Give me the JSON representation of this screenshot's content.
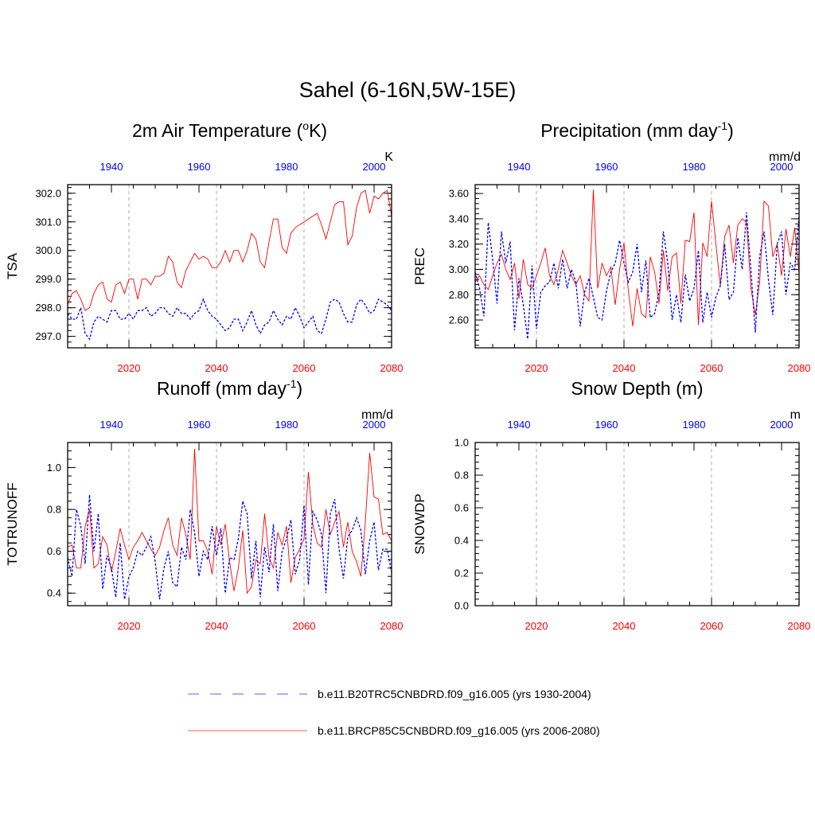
{
  "main_title": "Sahel (6-16N,5W-15E)",
  "colors": {
    "future": "#ff0000",
    "historical": "#0000ff",
    "grid": "#aaaaaa"
  },
  "legend": [
    {
      "label": "b.e11.B20TRC5CNBDRD.f09_g16.005 (yrs 1930-2004)",
      "style": "dashed",
      "color": "#0000ff"
    },
    {
      "label": "b.e11.BRCP85C5CNBDRD.f09_g16.005 (yrs 2006-2080)",
      "style": "solid",
      "color": "#ff0000"
    }
  ],
  "chart_data": [
    {
      "type": "line",
      "title": "2m Air Temperature (",
      "title_sup": "o",
      "title_tail": "K)",
      "ylabel": "TSA",
      "units": "K",
      "xlim_bottom": [
        2006,
        2080
      ],
      "xlim_top": [
        1930,
        2004
      ],
      "bottom_ticks": [
        "2020",
        "2040",
        "2060",
        "2080"
      ],
      "top_ticks": [
        "1940",
        "1960",
        "1980",
        "2000"
      ],
      "ylim": [
        296.6,
        302.3
      ],
      "yticks": [
        297.0,
        298.0,
        299.0,
        300.0,
        301.0,
        302.0
      ],
      "ytick_labels": [
        "297.0",
        "298.0",
        "299.0",
        "300.0",
        "301.0",
        "302.0"
      ],
      "series": [
        {
          "name": "b.e11.BRCP85C5CNBDRD.f09_g16.005",
          "style": "solid",
          "values": [
            298.1,
            298.5,
            298.6,
            298.3,
            297.9,
            298.0,
            298.5,
            298.8,
            298.9,
            298.3,
            298.2,
            298.8,
            298.9,
            298.5,
            299.0,
            299.0,
            298.3,
            299.0,
            299.0,
            298.8,
            299.1,
            299.1,
            299.2,
            299.8,
            299.6,
            298.9,
            298.7,
            299.3,
            299.6,
            299.9,
            299.7,
            299.8,
            299.7,
            299.4,
            299.4,
            299.6,
            300.0,
            299.6,
            300.0,
            300.0,
            299.6,
            300.0,
            300.6,
            300.4,
            299.6,
            299.4,
            300.3,
            301.1,
            301.1,
            300.1,
            299.9,
            300.6,
            300.8,
            300.9,
            301.0,
            301.1,
            301.2,
            301.3,
            300.9,
            300.4,
            301.0,
            301.6,
            301.7,
            301.7,
            300.2,
            300.5,
            301.5,
            302.0,
            302.1,
            301.3,
            301.9,
            301.8,
            302.0,
            302.1,
            301.2
          ]
        },
        {
          "name": "b.e11.B20TRC5CNBDRD.f09_g16.005",
          "style": "dashed",
          "values": [
            297.8,
            297.6,
            297.6,
            298.0,
            297.1,
            296.9,
            297.5,
            297.7,
            297.6,
            297.5,
            297.9,
            297.9,
            297.6,
            297.6,
            297.8,
            297.6,
            297.9,
            297.9,
            298.0,
            297.7,
            297.8,
            298.0,
            298.0,
            297.8,
            297.7,
            298.0,
            297.8,
            297.8,
            297.6,
            297.8,
            297.9,
            298.3,
            297.9,
            297.7,
            297.6,
            297.4,
            297.2,
            297.3,
            297.6,
            297.6,
            297.2,
            297.5,
            297.9,
            297.4,
            297.1,
            297.4,
            297.5,
            297.9,
            297.6,
            297.4,
            297.7,
            297.6,
            298.0,
            297.7,
            297.3,
            297.5,
            297.7,
            297.2,
            297.1,
            297.6,
            298.2,
            298.3,
            298.2,
            297.8,
            297.5,
            297.5,
            298.1,
            298.3,
            298.1,
            297.8,
            297.9,
            298.3,
            298.2,
            298.1,
            297.9
          ]
        }
      ]
    },
    {
      "type": "line",
      "title": "Precipitation (mm day",
      "title_sup": "-1",
      "title_tail": ")",
      "ylabel": "PREC",
      "units": "mm/d",
      "xlim_bottom": [
        2006,
        2080
      ],
      "xlim_top": [
        1930,
        2004
      ],
      "bottom_ticks": [
        "2020",
        "2040",
        "2060",
        "2080"
      ],
      "top_ticks": [
        "1940",
        "1960",
        "1980",
        "2000"
      ],
      "ylim": [
        2.38,
        3.67
      ],
      "yticks": [
        2.6,
        2.8,
        3.0,
        3.2,
        3.4,
        3.6
      ],
      "ytick_labels": [
        "2.60",
        "2.80",
        "3.00",
        "3.20",
        "3.40",
        "3.60"
      ],
      "series": [
        {
          "name": "b.e11.BRCP85C5CNBDRD.f09_g16.005",
          "style": "solid",
          "values": [
            2.9,
            2.95,
            2.88,
            2.84,
            2.95,
            3.05,
            3.12,
            3.0,
            2.92,
            3.05,
            2.77,
            3.08,
            2.88,
            2.85,
            2.95,
            3.05,
            3.17,
            2.95,
            2.88,
            3.0,
            3.15,
            3.05,
            2.95,
            2.88,
            2.95,
            2.8,
            2.75,
            3.63,
            2.85,
            3.05,
            2.95,
            3.02,
            2.72,
            3.0,
            3.21,
            2.83,
            2.55,
            2.85,
            2.65,
            2.62,
            3.1,
            2.98,
            2.73,
            3.15,
            2.83,
            3.1,
            3.13,
            2.73,
            3.23,
            3.22,
            3.45,
            2.56,
            3.21,
            3.1,
            3.54,
            3.2,
            2.87,
            3.26,
            3.35,
            3.05,
            3.35,
            3.4,
            3.37,
            2.85,
            2.64,
            2.9,
            3.54,
            3.5,
            3.1,
            3.2,
            2.95,
            3.32,
            3.1,
            3.33,
            2.97
          ]
        },
        {
          "name": "b.e11.B20TRC5CNBDRD.f09_g16.005",
          "style": "dashed",
          "values": [
            2.98,
            2.85,
            2.63,
            3.37,
            3.08,
            2.73,
            3.3,
            3.05,
            3.22,
            2.52,
            2.93,
            2.72,
            2.45,
            3.03,
            2.53,
            2.82,
            2.87,
            2.9,
            3.05,
            2.85,
            3.08,
            2.85,
            3.0,
            2.9,
            2.55,
            2.82,
            2.93,
            2.78,
            2.62,
            2.6,
            2.83,
            2.98,
            3.05,
            3.23,
            3.05,
            2.9,
            2.98,
            3.2,
            2.82,
            3.07,
            2.62,
            2.65,
            2.82,
            3.3,
            3.05,
            2.6,
            2.8,
            2.58,
            2.96,
            2.75,
            2.85,
            3.15,
            2.58,
            2.82,
            2.62,
            2.78,
            2.87,
            3.2,
            2.76,
            2.82,
            3.25,
            3.0,
            3.45,
            3.0,
            2.5,
            3.1,
            3.3,
            2.92,
            2.64,
            3.2,
            3.3,
            2.8,
            3.05,
            3.0,
            3.43
          ]
        }
      ]
    },
    {
      "type": "line",
      "title": "Runoff (mm day",
      "title_sup": "-1",
      "title_tail": ")",
      "ylabel": "TOTRUNOFF",
      "units": "mm/d",
      "xlim_bottom": [
        2006,
        2080
      ],
      "xlim_top": [
        1930,
        2004
      ],
      "bottom_ticks": [
        "2020",
        "2040",
        "2060",
        "2080"
      ],
      "top_ticks": [
        "1940",
        "1960",
        "1980",
        "2000"
      ],
      "ylim": [
        0.34,
        1.12
      ],
      "yticks": [
        0.4,
        0.6,
        0.8,
        1.0
      ],
      "ytick_labels": [
        "0.4",
        "0.6",
        "0.8",
        "1.0"
      ],
      "series": [
        {
          "name": "b.e11.BRCP85C5CNBDRD.f09_g16.005",
          "style": "solid",
          "values": [
            0.62,
            0.63,
            0.52,
            0.52,
            0.72,
            0.8,
            0.52,
            0.54,
            0.67,
            0.63,
            0.5,
            0.6,
            0.71,
            0.63,
            0.56,
            0.62,
            0.65,
            0.69,
            0.65,
            0.61,
            0.58,
            0.62,
            0.7,
            0.76,
            0.63,
            0.58,
            0.76,
            0.68,
            0.56,
            1.09,
            0.65,
            0.65,
            0.6,
            0.49,
            0.72,
            0.63,
            0.73,
            0.55,
            0.41,
            0.52,
            0.7,
            0.4,
            0.43,
            0.56,
            0.54,
            0.78,
            0.57,
            0.52,
            0.69,
            0.63,
            0.72,
            0.45,
            0.57,
            0.61,
            0.66,
            0.98,
            0.73,
            0.64,
            0.62,
            0.8,
            0.68,
            0.74,
            0.79,
            0.62,
            0.74,
            0.6,
            0.55,
            0.48,
            0.74,
            1.07,
            0.86,
            0.85,
            0.68,
            0.69,
            0.65
          ]
        },
        {
          "name": "b.e11.B20TRC5CNBDRD.f09_g16.005",
          "style": "dashed",
          "values": [
            0.57,
            0.48,
            0.8,
            0.72,
            0.54,
            0.87,
            0.6,
            0.78,
            0.42,
            0.58,
            0.52,
            0.38,
            0.64,
            0.37,
            0.48,
            0.52,
            0.6,
            0.58,
            0.62,
            0.67,
            0.55,
            0.37,
            0.52,
            0.6,
            0.45,
            0.43,
            0.62,
            0.56,
            0.8,
            0.69,
            0.48,
            0.6,
            0.56,
            0.72,
            0.58,
            0.71,
            0.4,
            0.57,
            0.56,
            0.66,
            0.84,
            0.78,
            0.47,
            0.65,
            0.38,
            0.62,
            0.5,
            0.73,
            0.41,
            0.6,
            0.66,
            0.75,
            0.49,
            0.56,
            0.82,
            0.44,
            0.79,
            0.75,
            0.68,
            0.4,
            0.78,
            0.85,
            0.61,
            0.47,
            0.67,
            0.7,
            0.76,
            0.7,
            0.49,
            0.65,
            0.74,
            0.51,
            0.61,
            0.61,
            0.5
          ]
        }
      ]
    },
    {
      "type": "line",
      "title": "Snow Depth (m)",
      "title_sup": "",
      "title_tail": "",
      "ylabel": "SNOWDP",
      "units": "m",
      "xlim_bottom": [
        2006,
        2080
      ],
      "xlim_top": [
        1930,
        2004
      ],
      "bottom_ticks": [
        "2020",
        "2040",
        "2060",
        "2080"
      ],
      "top_ticks": [
        "1940",
        "1960",
        "1980",
        "2000"
      ],
      "ylim": [
        0.0,
        1.0
      ],
      "yticks": [
        0.0,
        0.2,
        0.4,
        0.6,
        0.8,
        1.0
      ],
      "ytick_labels": [
        "0.0",
        "0.2",
        "0.4",
        "0.6",
        "0.8",
        "1.0"
      ],
      "series": []
    }
  ]
}
